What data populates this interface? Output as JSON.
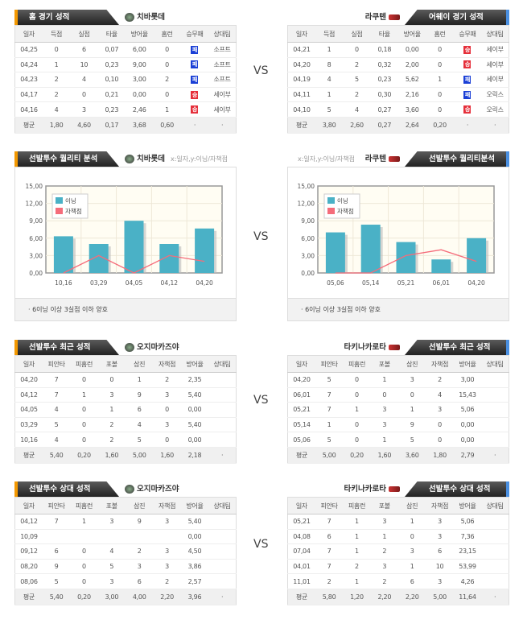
{
  "vs_label": "VS",
  "colors": {
    "home_accent": "#f39800",
    "away_accent": "#4a8fe0",
    "win": "#e52f3a",
    "loss": "#1a3fd6",
    "bar": "#4ab1c6",
    "line": "#f56c7a"
  },
  "sections": [
    {
      "left": {
        "title": "홈 경기 성적",
        "team": "치바롯데",
        "logo": "chiba-lotte-logo",
        "columns": [
          "일자",
          "득점",
          "실점",
          "타율",
          "방어율",
          "홈런",
          "승무패",
          "상대팀"
        ],
        "rows": [
          [
            "04,25",
            "0",
            "6",
            "0,07",
            "6,00",
            "0",
            {
              "badge": "패"
            },
            "소프트"
          ],
          [
            "04,24",
            "1",
            "10",
            "0,23",
            "9,00",
            "0",
            {
              "badge": "패"
            },
            "소프트"
          ],
          [
            "04,23",
            "2",
            "4",
            "0,10",
            "3,00",
            "2",
            {
              "badge": "패"
            },
            "소프트"
          ],
          [
            "04,17",
            "2",
            "0",
            "0,21",
            "0,00",
            "0",
            {
              "badge": "승"
            },
            "세이부"
          ],
          [
            "04,16",
            "4",
            "3",
            "0,23",
            "2,46",
            "1",
            {
              "badge": "승"
            },
            "세이부"
          ]
        ],
        "avg": [
          "평균",
          "1,80",
          "4,60",
          "0,17",
          "3,68",
          "0,60",
          "·",
          "·"
        ]
      },
      "right": {
        "title": "어웨이 경기 성적",
        "team": "라쿠텐",
        "logo": "rakuten-logo",
        "columns": [
          "일자",
          "득점",
          "실점",
          "타율",
          "방어율",
          "홈런",
          "승무패",
          "상대팀"
        ],
        "rows": [
          [
            "04,21",
            "1",
            "0",
            "0,18",
            "0,00",
            "0",
            {
              "badge": "승"
            },
            "세이부"
          ],
          [
            "04,20",
            "8",
            "2",
            "0,32",
            "2,00",
            "0",
            {
              "badge": "승"
            },
            "세이부"
          ],
          [
            "04,19",
            "4",
            "5",
            "0,23",
            "5,62",
            "1",
            {
              "badge": "패"
            },
            "세이부"
          ],
          [
            "04,11",
            "1",
            "2",
            "0,30",
            "2,16",
            "0",
            {
              "badge": "패"
            },
            "오릭스"
          ],
          [
            "04,10",
            "5",
            "4",
            "0,27",
            "3,60",
            "0",
            {
              "badge": "승"
            },
            "오릭스"
          ]
        ],
        "avg": [
          "평균",
          "3,80",
          "2,60",
          "0,27",
          "2,64",
          "0,20",
          "·",
          "·"
        ]
      }
    },
    {
      "left": {
        "title": "선발투수 퀄리티 분석",
        "team": "치바롯데",
        "axis_note": "x:일자,y:이닝/자책점",
        "footnote": "6이닝 이상 3실점 이하 양호"
      },
      "right": {
        "title": "선발투수 퀄리티분석",
        "team": "라쿠텐",
        "axis_note": "x:일자,y:이닝/자책점",
        "footnote": "6이닝 이상 3실점 이하 양호"
      }
    },
    {
      "left": {
        "title": "선발투수 최근 성적",
        "team": "오지마카즈야",
        "columns": [
          "일자",
          "피안타",
          "피홈런",
          "포볼",
          "삼진",
          "자책점",
          "방어율",
          "상대팀"
        ],
        "rows": [
          [
            "04,20",
            "7",
            "0",
            "0",
            "1",
            "2",
            "2,35",
            ""
          ],
          [
            "04,12",
            "7",
            "1",
            "3",
            "9",
            "3",
            "5,40",
            ""
          ],
          [
            "04,05",
            "4",
            "0",
            "1",
            "6",
            "0",
            "0,00",
            ""
          ],
          [
            "03,29",
            "5",
            "0",
            "2",
            "4",
            "3",
            "5,40",
            ""
          ],
          [
            "10,16",
            "4",
            "0",
            "2",
            "5",
            "0",
            "0,00",
            ""
          ]
        ],
        "avg": [
          "평균",
          "5,40",
          "0,20",
          "1,60",
          "5,00",
          "1,60",
          "2,18",
          "·"
        ]
      },
      "right": {
        "title": "선발투수 최근 성적",
        "team": "타키나카로타",
        "columns": [
          "일자",
          "피안타",
          "피홈런",
          "포볼",
          "삼진",
          "자책점",
          "방어율",
          "상대팀"
        ],
        "rows": [
          [
            "04,20",
            "5",
            "0",
            "1",
            "3",
            "2",
            "3,00",
            ""
          ],
          [
            "06,01",
            "7",
            "0",
            "0",
            "0",
            "4",
            "15,43",
            ""
          ],
          [
            "05,21",
            "7",
            "1",
            "3",
            "1",
            "3",
            "5,06",
            ""
          ],
          [
            "05,14",
            "1",
            "0",
            "3",
            "9",
            "0",
            "0,00",
            ""
          ],
          [
            "05,06",
            "5",
            "0",
            "1",
            "5",
            "0",
            "0,00",
            ""
          ]
        ],
        "avg": [
          "평균",
          "5,00",
          "0,20",
          "1,60",
          "3,60",
          "1,80",
          "2,79",
          "·"
        ]
      }
    },
    {
      "left": {
        "title": "선발투수 상대 성적",
        "team": "오지마카즈야",
        "columns": [
          "일자",
          "피안타",
          "피홈런",
          "포볼",
          "삼진",
          "자책점",
          "방어율",
          "상대팀"
        ],
        "rows": [
          [
            "04,12",
            "7",
            "1",
            "3",
            "9",
            "3",
            "5,40",
            ""
          ],
          [
            "10,09",
            "",
            "",
            "",
            "",
            "",
            "0,00",
            ""
          ],
          [
            "09,12",
            "6",
            "0",
            "4",
            "2",
            "3",
            "4,50",
            ""
          ],
          [
            "08,20",
            "9",
            "0",
            "5",
            "3",
            "3",
            "3,86",
            ""
          ],
          [
            "08,06",
            "5",
            "0",
            "3",
            "6",
            "2",
            "2,57",
            ""
          ]
        ],
        "avg": [
          "평균",
          "5,40",
          "0,20",
          "3,00",
          "4,00",
          "2,20",
          "3,96",
          "·"
        ]
      },
      "right": {
        "title": "선발투수 상대 성적",
        "team": "타키나카로타",
        "columns": [
          "일자",
          "피안타",
          "피홈런",
          "포볼",
          "삼진",
          "자책점",
          "방어율",
          "상대팀"
        ],
        "rows": [
          [
            "05,21",
            "7",
            "1",
            "3",
            "1",
            "3",
            "5,06",
            ""
          ],
          [
            "04,08",
            "6",
            "1",
            "1",
            "0",
            "3",
            "7,36",
            ""
          ],
          [
            "07,04",
            "7",
            "1",
            "2",
            "3",
            "6",
            "23,15",
            ""
          ],
          [
            "04,01",
            "7",
            "2",
            "3",
            "1",
            "10",
            "53,99",
            ""
          ],
          [
            "11,01",
            "2",
            "1",
            "2",
            "6",
            "3",
            "4,26",
            ""
          ]
        ],
        "avg": [
          "평균",
          "5,80",
          "1,20",
          "2,20",
          "2,20",
          "5,00",
          "11,64",
          "·"
        ]
      }
    }
  ],
  "chart_data": [
    {
      "type": "bar",
      "categories": [
        "10,16",
        "03,29",
        "04,05",
        "04,12",
        "04,20"
      ],
      "ylim": [
        0,
        15
      ],
      "yticks": [
        "0,00",
        "3,00",
        "6,00",
        "9,00",
        "12,00",
        "15,00"
      ],
      "grid": true,
      "legend": "top-left",
      "series": [
        {
          "name": "이닝",
          "type": "bar",
          "values": [
            6.33,
            5,
            9,
            5,
            7.67
          ]
        },
        {
          "name": "자책점",
          "type": "line",
          "values": [
            0,
            3,
            0,
            3,
            2
          ]
        }
      ]
    },
    {
      "type": "bar",
      "categories": [
        "05,06",
        "05,14",
        "05,21",
        "06,01",
        "04,20"
      ],
      "ylim": [
        0,
        15
      ],
      "yticks": [
        "0,00",
        "3,00",
        "6,00",
        "9,00",
        "12,00",
        "15,00"
      ],
      "grid": true,
      "legend": "top-left",
      "series": [
        {
          "name": "이닝",
          "type": "bar",
          "values": [
            7,
            8.33,
            5.33,
            2.33,
            6
          ]
        },
        {
          "name": "자책점",
          "type": "line",
          "values": [
            0,
            0,
            3,
            4,
            2
          ]
        }
      ]
    }
  ]
}
